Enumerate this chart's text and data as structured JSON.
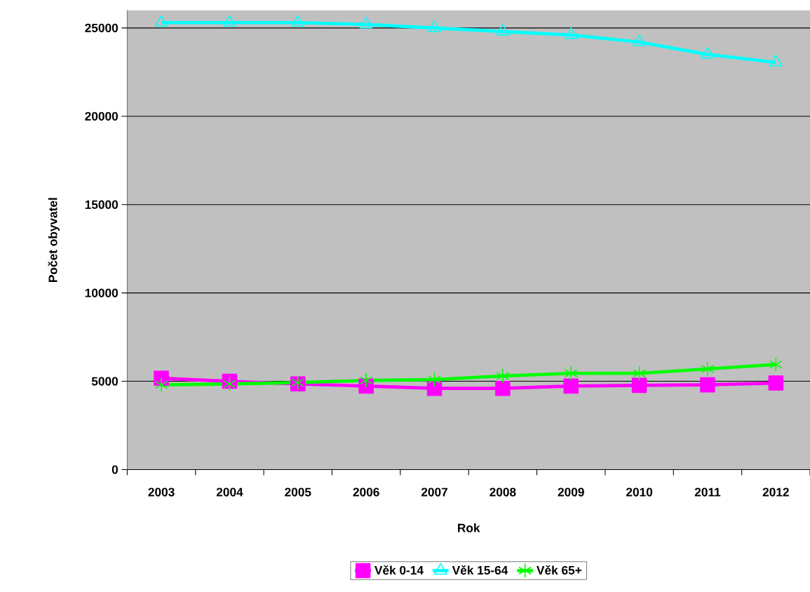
{
  "chart_data": {
    "type": "line",
    "xlabel": "Rok",
    "ylabel": "Počet obyvatel",
    "categories": [
      "2003",
      "2004",
      "2005",
      "2006",
      "2007",
      "2008",
      "2009",
      "2010",
      "2011",
      "2012"
    ],
    "series": [
      {
        "name": "Věk 0-14",
        "color": "#ff00ff",
        "marker": "square",
        "values": [
          5170,
          5000,
          4850,
          4730,
          4600,
          4600,
          4730,
          4770,
          4800,
          4900
        ]
      },
      {
        "name": "Věk 15-64",
        "color": "#00ffff",
        "marker": "triangle",
        "values": [
          25300,
          25300,
          25300,
          25200,
          25000,
          24800,
          24600,
          24200,
          23500,
          23050
        ]
      },
      {
        "name": "Věk 65+",
        "color": "#00ff00",
        "marker": "cross",
        "values": [
          4800,
          4850,
          4930,
          5050,
          5100,
          5300,
          5450,
          5450,
          5700,
          5950
        ]
      }
    ],
    "ylim": [
      0,
      26000
    ],
    "yticks": [
      0,
      5000,
      10000,
      15000,
      20000,
      25000
    ],
    "grid": "y",
    "legend": "bottom"
  }
}
